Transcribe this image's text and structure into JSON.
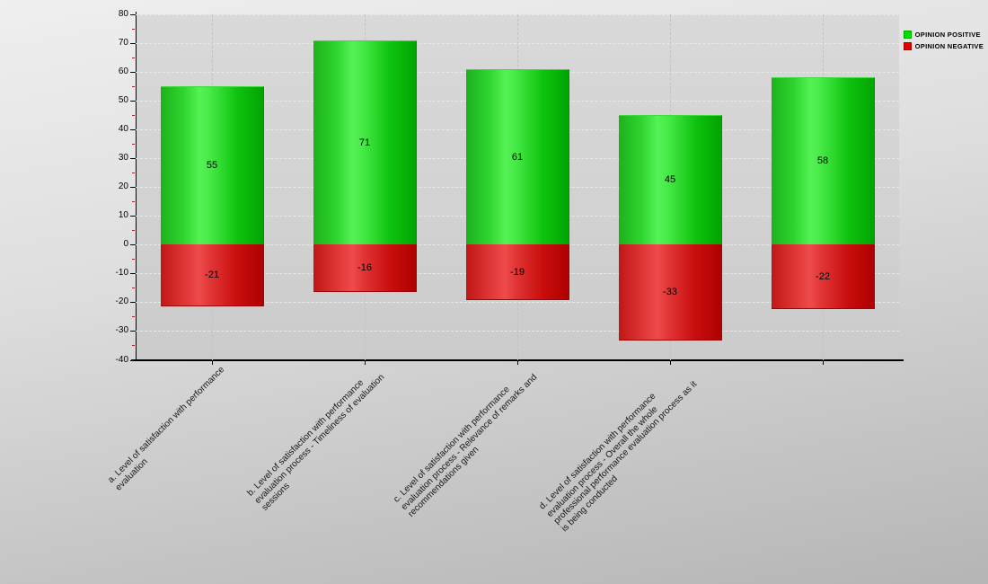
{
  "chart_data": {
    "type": "bar",
    "title": "",
    "xlabel": "",
    "ylabel": "",
    "categories": [
      "a. Level of satisfaction with performance evaluation",
      "b. Level of satisfaction with performance evaluation process - Timeliness of evaluation sessions",
      "c. Level of satisfaction with performance evaluation process - Relevance of remarks and recommendations given",
      "d. Level of satisfaction with performance evaluation process - Overall the whole professional performance evaluation process as it is being conducted",
      ""
    ],
    "category_label_lines": [
      [
        "a. Level of satisfaction with performance",
        "evaluation"
      ],
      [
        "b. Level of satisfaction with performance",
        "evaluation process - Timeliness of evaluation",
        "sessions"
      ],
      [
        "c. Level of satisfaction with performance",
        "evaluation process - Relevance of remarks and",
        "recommendations given"
      ],
      [
        "d. Level of satisfaction with performance",
        "evaluation process - Overall the whole",
        "professional performance evaluation process as it",
        "is being conducted"
      ],
      []
    ],
    "series": [
      {
        "name": "OPINION POSITIVE",
        "color": "#00e100",
        "values": [
          55,
          71,
          61,
          45,
          58
        ]
      },
      {
        "name": "OPINION NEGATIVE",
        "color": "#e10000",
        "values": [
          -21,
          -16,
          -19,
          -33,
          -22
        ]
      }
    ],
    "ylim": [
      -40,
      80
    ],
    "yticks": [
      -40,
      -30,
      -20,
      -10,
      0,
      10,
      20,
      30,
      40,
      50,
      60,
      70,
      80
    ],
    "yminor_step": 5,
    "minor_tick_color": "#ff0000",
    "grid": true,
    "legend_position": "top-right"
  }
}
